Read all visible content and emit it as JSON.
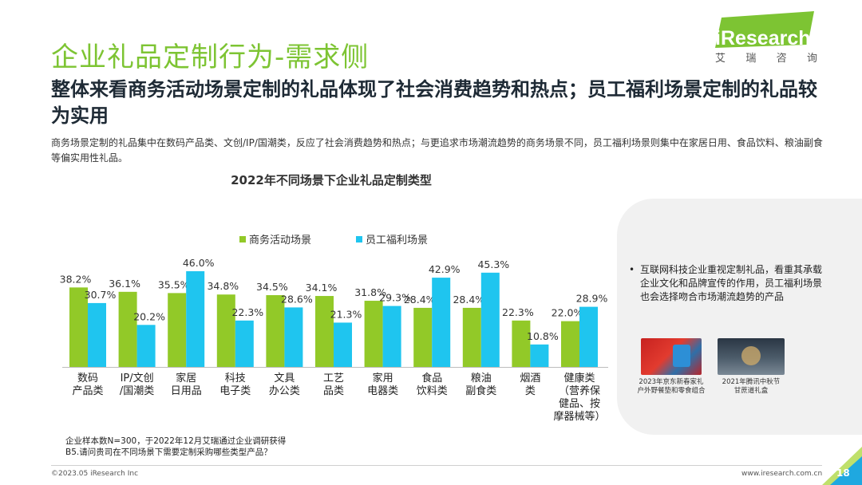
{
  "header": {
    "title": "企业礼品定制行为-需求侧",
    "logo_brand": "iResearch",
    "logo_sub": [
      "艾",
      "瑞",
      "咨",
      "询"
    ]
  },
  "headline": "整体来看商务活动场景定制的礼品体现了社会消费趋势和热点；员工福利场景定制的礼品较为实用",
  "summary": "商务场景定制的礼品集中在数码产品类、文创/IP/国潮类，反应了社会消费趋势和热点；与更追求市场潮流趋势的商务场景不同，员工福利场景则集中在家居日用、食品饮料、粮油副食等偏实用性礼品。",
  "colors": {
    "accent_green": "#7dc433",
    "series_business": "#92c928",
    "series_employee": "#1fc5ef",
    "logo_blue": "#1fb3e8",
    "panel_gray": "#f1f1f1"
  },
  "chart_data": {
    "type": "bar",
    "title": "2022年不同场景下企业礼品定制类型",
    "categories": [
      [
        "数码",
        "产品类"
      ],
      [
        "IP/文创",
        "/国潮类"
      ],
      [
        "家居",
        "日用品"
      ],
      [
        "科技",
        "电子类"
      ],
      [
        "文具",
        "办公类"
      ],
      [
        "工艺",
        "品类"
      ],
      [
        "家用",
        "电器类"
      ],
      [
        "食品",
        "饮料类"
      ],
      [
        "粮油",
        "副食类"
      ],
      [
        "烟酒",
        "类"
      ],
      [
        "健康类",
        "（营养保",
        "健品、按",
        "摩器械等）"
      ]
    ],
    "series": [
      {
        "name": "商务活动场景",
        "color": "#92c928",
        "values": [
          38.2,
          36.1,
          35.5,
          34.8,
          34.5,
          34.1,
          31.8,
          28.4,
          28.4,
          22.3,
          22.0
        ],
        "labels": [
          "38.2%",
          "36.1%",
          "35.5%",
          "34.8%",
          "34.5%",
          "34.1%",
          "31.8%",
          "28.4%",
          "28.4%",
          "22.3%",
          "22.0%"
        ]
      },
      {
        "name": "员工福利场景",
        "color": "#1fc5ef",
        "values": [
          30.7,
          20.2,
          46.0,
          22.3,
          28.6,
          21.3,
          29.3,
          42.9,
          45.3,
          10.8,
          28.9
        ],
        "labels": [
          "30.7%",
          "20.2%",
          "46.0%",
          "22.3%",
          "28.6%",
          "21.3%",
          "29.3%",
          "42.9%",
          "45.3%",
          "10.8%",
          "28.9%"
        ]
      }
    ],
    "unit": "%",
    "ylim": [
      0,
      46
    ],
    "legend_position": "top"
  },
  "insight": {
    "bullet": "•",
    "text": "互联网科技企业重视定制礼品，看重其承载企业文化和品牌宣传的作用，员工福利场景也会选择吻合市场潮流趋势的产品",
    "photo_captions": [
      [
        "2023年京东新春家礼",
        "户外野餐垫和零食组合"
      ],
      [
        "2021年腾讯中秋节",
        "甘蔗道礼盒"
      ]
    ]
  },
  "note": {
    "line1": "企业样本数N=300，于2022年12月艾瑞通过企业调研获得",
    "line2": "B5.请问贵司在不同场景下需要定制采购哪些类型产品？"
  },
  "footer": {
    "copyright": "©2023.05 iResearch Inc",
    "website": "www.iresearch.com.cn",
    "page_number": "18"
  }
}
